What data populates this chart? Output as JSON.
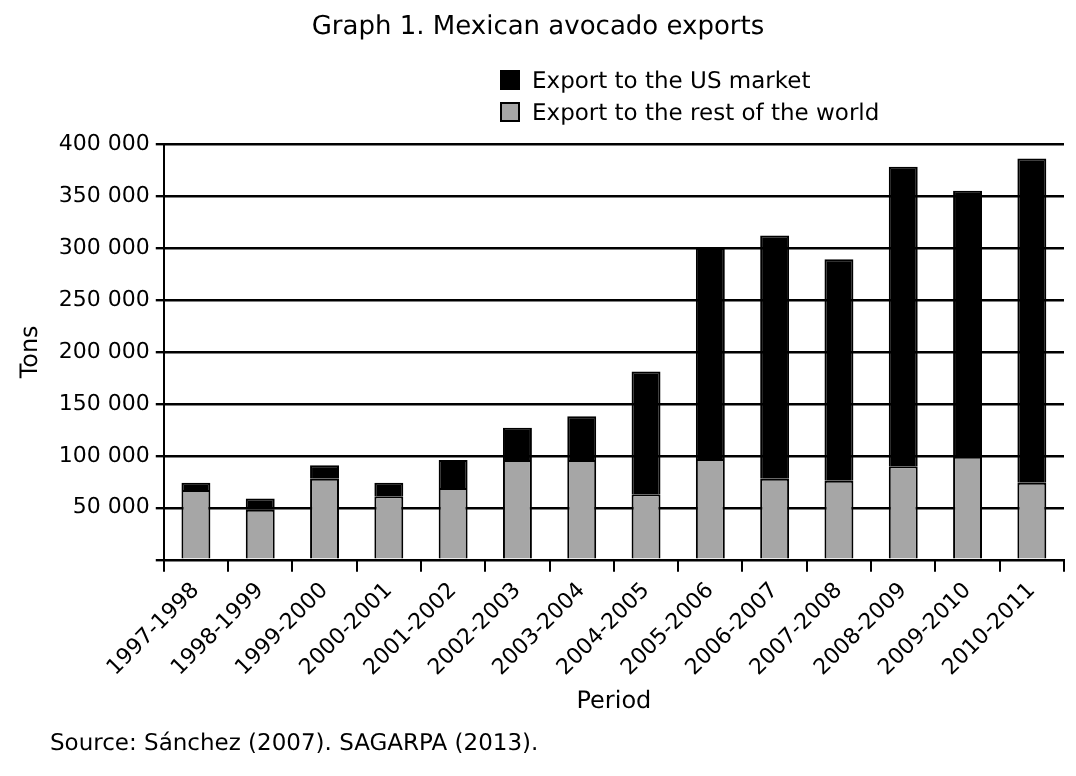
{
  "chart_data": {
    "type": "bar",
    "title": "Graph 1. Mexican avocado exports",
    "xlabel": "Period",
    "ylabel": "Tons",
    "categories": [
      "1997-1998",
      "1998-1999",
      "1999-2000",
      "2000-2001",
      "2001-2002",
      "2002-2003",
      "2003-2004",
      "2004-2005",
      "2005-2006",
      "2006-2007",
      "2007-2008",
      "2008-2009",
      "2009-2010",
      "2010-2011"
    ],
    "stacked": true,
    "series": [
      {
        "name": "Export to the rest of the world",
        "color": "#a6a6a6",
        "values": [
          67000,
          48000,
          78000,
          61000,
          69000,
          96000,
          96000,
          63000,
          97000,
          78000,
          76000,
          90000,
          99000,
          74000
        ]
      },
      {
        "name": "Export to the US market",
        "color": "#000000",
        "values": [
          7000,
          11000,
          13000,
          13000,
          27000,
          31000,
          42000,
          118000,
          203000,
          234000,
          213000,
          288000,
          256000,
          312000
        ]
      }
    ],
    "ylim": [
      0,
      400000
    ],
    "yticks": [
      {
        "value": 0,
        "label": null
      },
      {
        "value": 50000,
        "label": "50 000"
      },
      {
        "value": 100000,
        "label": "100 000"
      },
      {
        "value": 150000,
        "label": "150 000"
      },
      {
        "value": 200000,
        "label": "200 000"
      },
      {
        "value": 250000,
        "label": "250 000"
      },
      {
        "value": 300000,
        "label": "300 000"
      },
      {
        "value": 350000,
        "label": "350 000"
      },
      {
        "value": 400000,
        "label": "400 000"
      }
    ],
    "grid": "y",
    "legend": "top",
    "annotations": [
      "Source: Sánchez (2007). SAGARPA (2013)."
    ]
  }
}
